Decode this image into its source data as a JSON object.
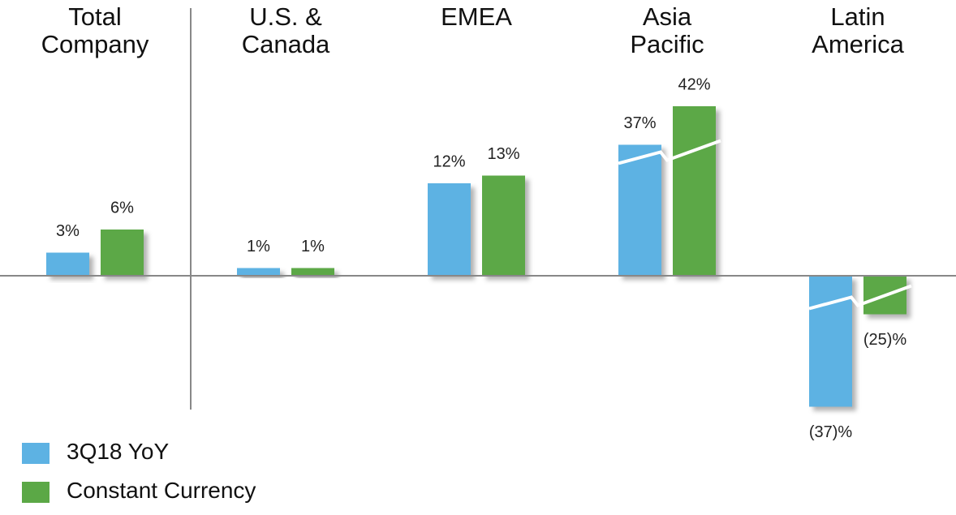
{
  "chart_data": {
    "type": "bar",
    "categories": [
      "Total\nCompany",
      "U.S. &\nCanada",
      "EMEA",
      "Asia\nPacific",
      "Latin\nAmerica"
    ],
    "series": [
      {
        "name": "3Q18 YoY",
        "color": "#5db2e3",
        "values": [
          3,
          1,
          12,
          37,
          -37
        ],
        "value_labels": [
          "3%",
          "1%",
          "12%",
          "37%",
          "(37)%"
        ]
      },
      {
        "name": "Constant Currency",
        "color": "#5ba846",
        "values": [
          6,
          1,
          13,
          42,
          -25
        ],
        "value_labels": [
          "6%",
          "1%",
          "13%",
          "42%",
          "(25)%"
        ]
      }
    ],
    "legend": "lower left"
  }
}
